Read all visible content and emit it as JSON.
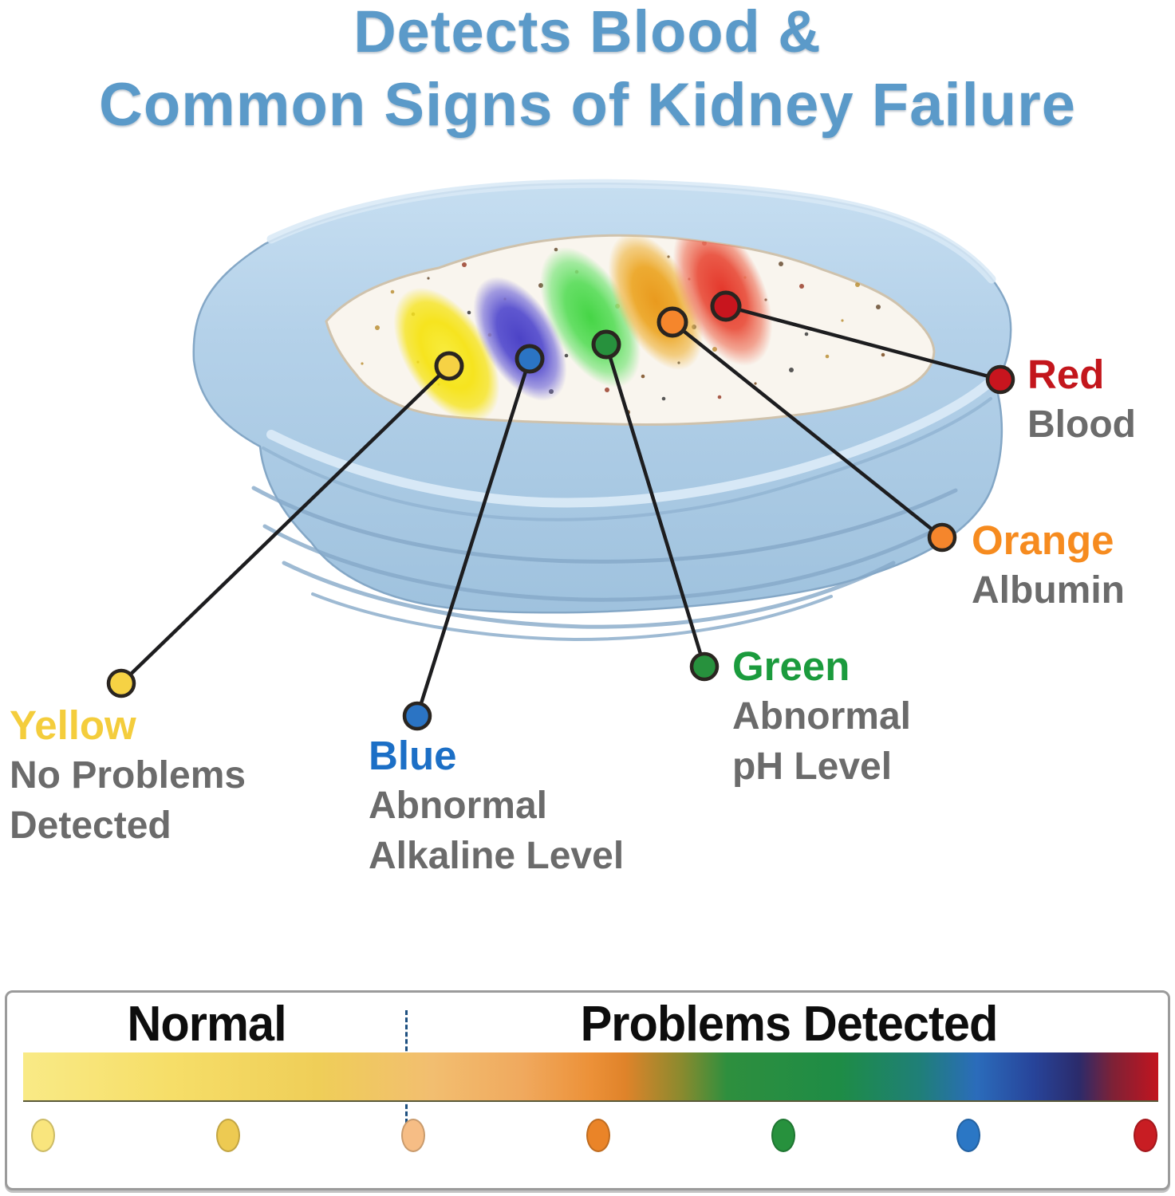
{
  "title": {
    "line1": "Detects Blood &",
    "line2": "Common Signs of Kidney Failure",
    "color": "#5B9AC9"
  },
  "palette": {
    "desc_text_color": "#6B6B6B",
    "header_text_color": "#0D0D0D",
    "divider_color": "#1E5080",
    "pan_blue": "#B2D0E8",
    "litter_white": "#F9F5EE",
    "callout_line_color": "#1D1D1F"
  },
  "callouts": [
    {
      "name": "Yellow",
      "desc": [
        "No Problems",
        "Detected"
      ],
      "text_color": "#F4CD3C",
      "dot_color": "#F6D244",
      "spot_color": "#F6E41F"
    },
    {
      "name": "Blue",
      "desc": [
        "Abnormal",
        "Alkaline Level"
      ],
      "text_color": "#1C6FC6",
      "dot_color": "#2B74C4",
      "spot_color": "#5F57D0"
    },
    {
      "name": "Green",
      "desc": [
        "Abnormal",
        "pH Level"
      ],
      "text_color": "#1B9B3D",
      "dot_color": "#27913D",
      "spot_color": "#66DF66"
    },
    {
      "name": "Orange",
      "desc": [
        "Albumin"
      ],
      "text_color": "#F68B1F",
      "dot_color": "#F5862C",
      "spot_color": "#EDAB32"
    },
    {
      "name": "Red",
      "desc": [
        "Blood"
      ],
      "text_color": "#C3161C",
      "dot_color": "#C8151E",
      "spot_color": "#EA5A48"
    }
  ],
  "scale": {
    "normal_label": "Normal",
    "problems_label": "Problems Detected",
    "gradient_stops": [
      "#F9EA86 0%",
      "#F6DE68 13%",
      "#EFCE58 26%",
      "#F2BE70 36%",
      "#F0A95E 44%",
      "#EC9138 50%",
      "#E0832A 53%",
      "#8A8A2E 58%",
      "#2E8F3E 62%",
      "#1E8C46 72%",
      "#1F7F78 79%",
      "#2B6CBB 84%",
      "#27449A 89%",
      "#2B2B6B 93%",
      "#7E2136 96%",
      "#C2141F 100%"
    ],
    "legend_dot_colors": [
      "#F9E57D",
      "#EDCA52",
      "#F6BD85",
      "#EA8428",
      "#27913D",
      "#2B77C5",
      "#C81D23"
    ]
  }
}
